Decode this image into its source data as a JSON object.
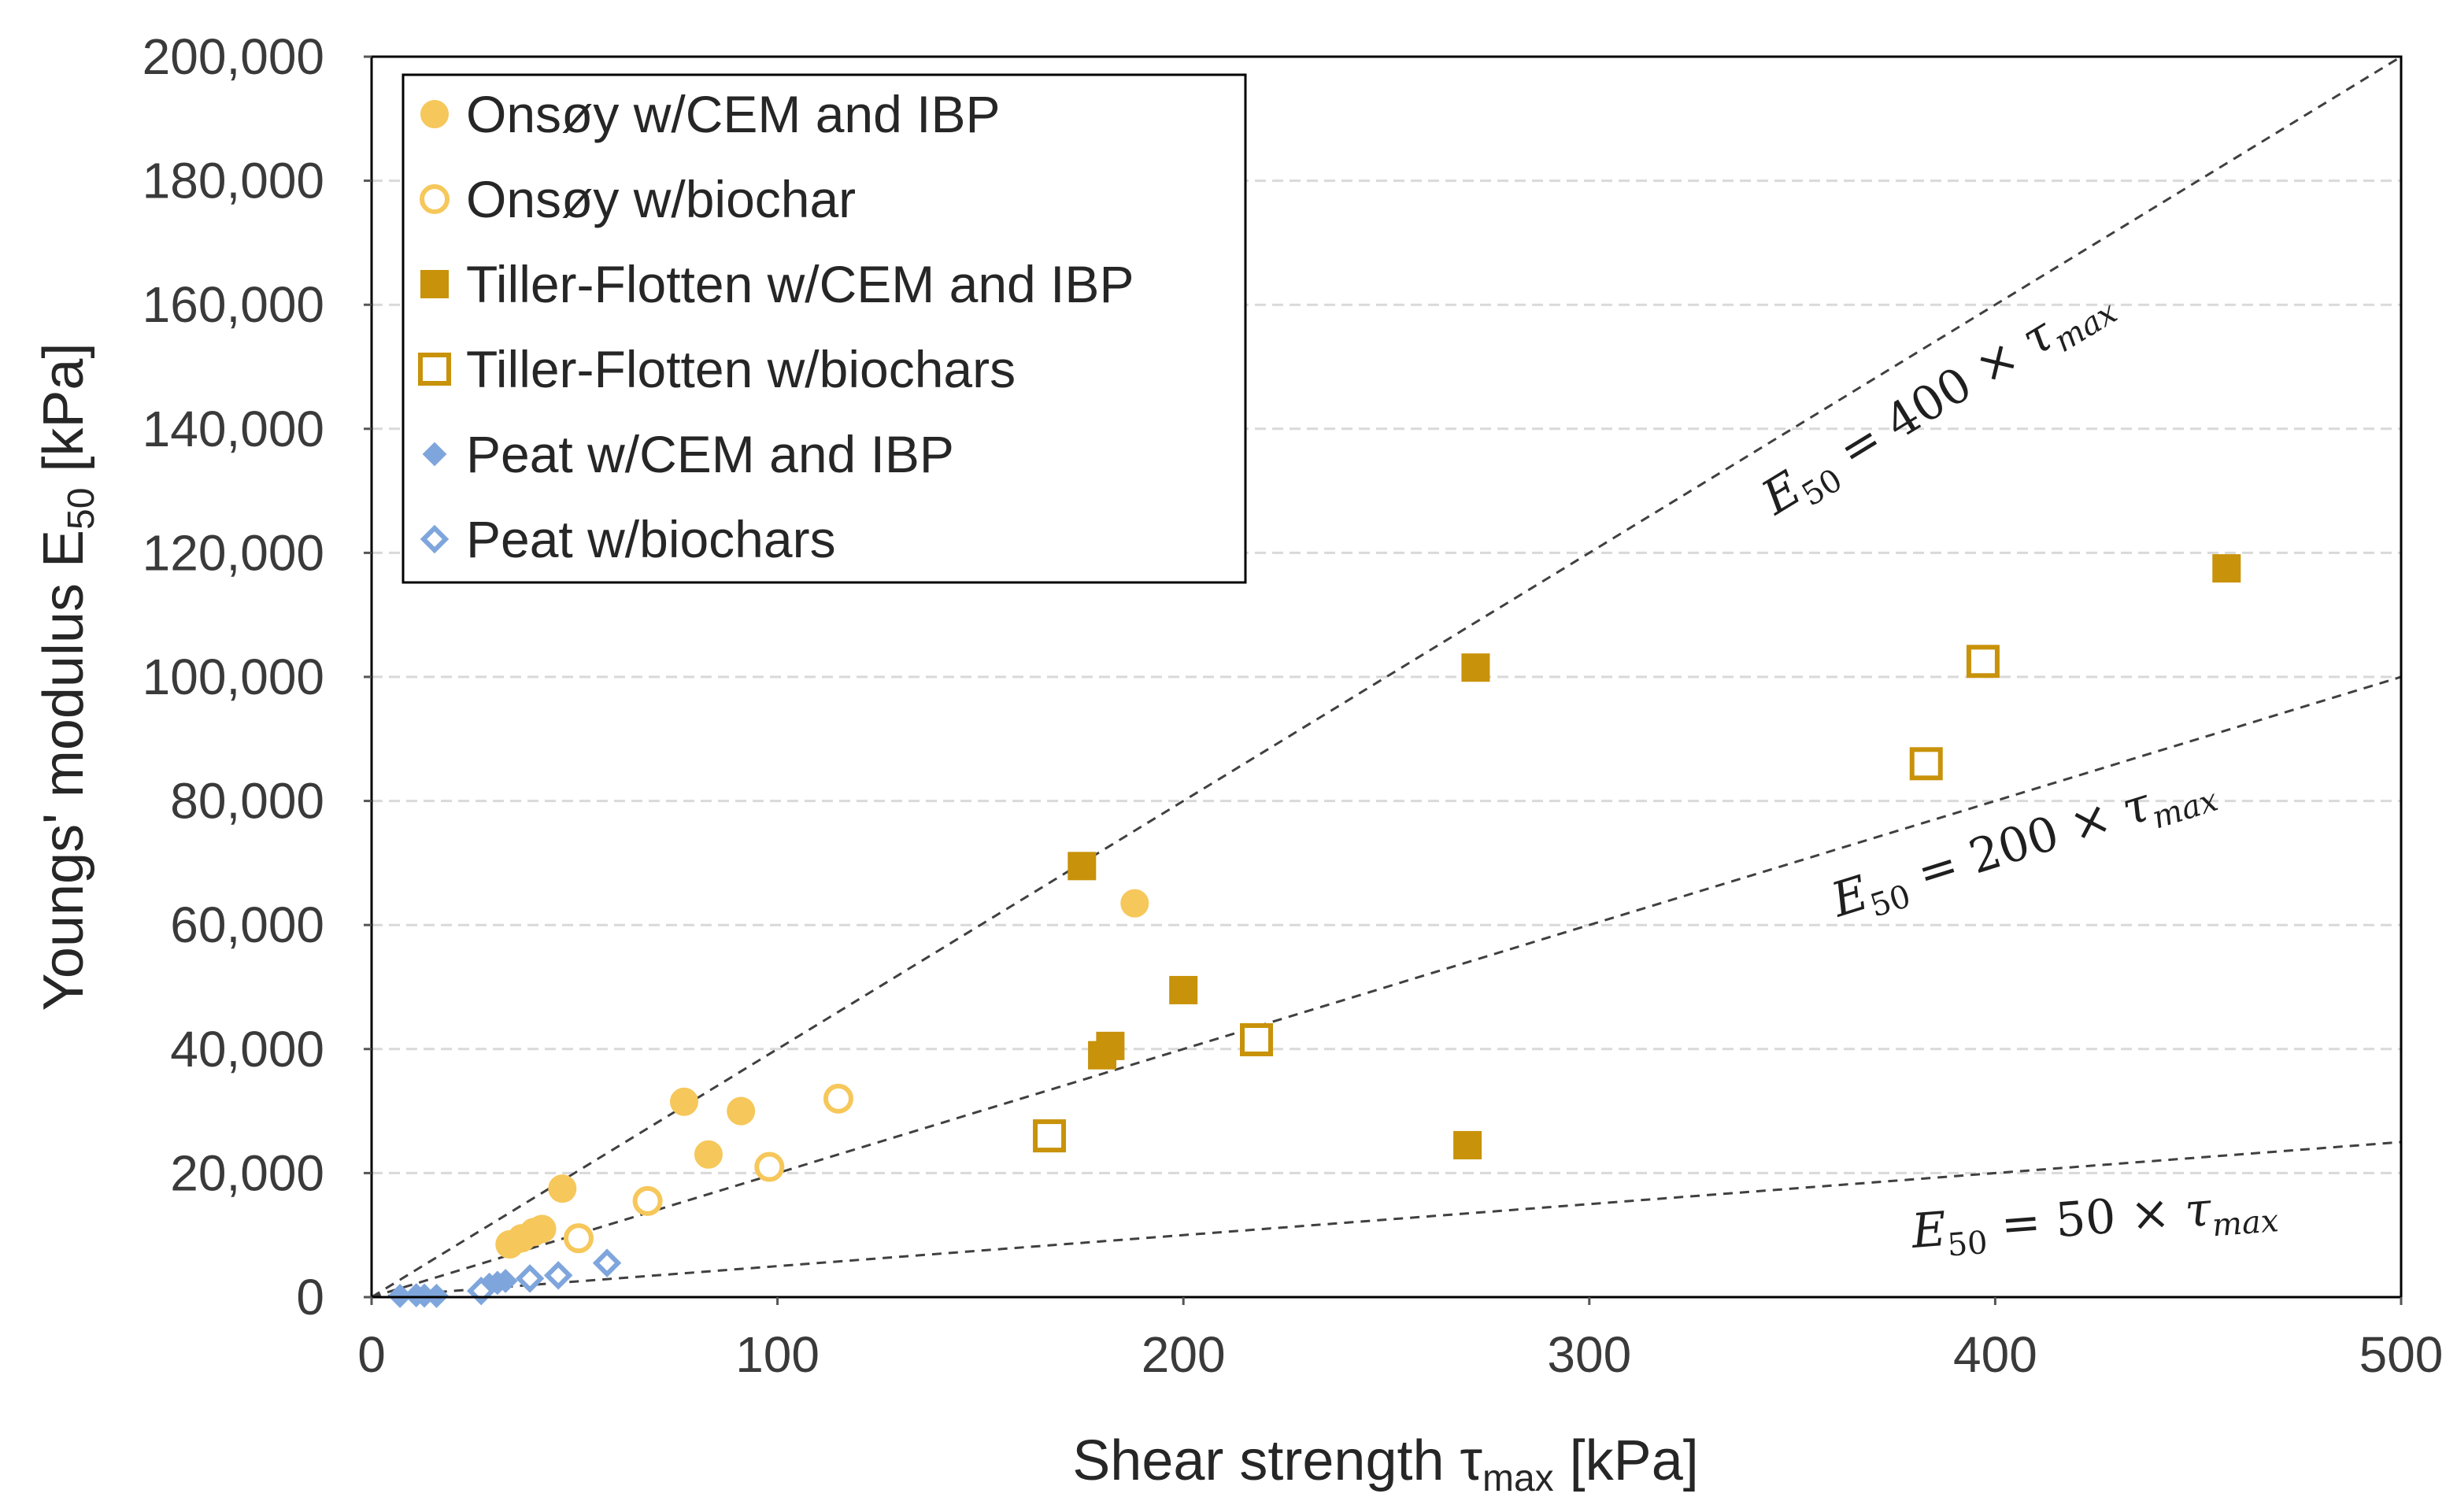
{
  "chart_data": {
    "type": "scatter",
    "title": "",
    "xlabel": {
      "main": "Shear strength τ",
      "sub": "max",
      "unit": " [kPa]"
    },
    "ylabel": {
      "main": "Youngs' modulus E",
      "sub": "50",
      "unit": " [kPa]"
    },
    "xlim": [
      0,
      500
    ],
    "ylim": [
      0,
      200000
    ],
    "x_ticks": [
      0,
      100,
      200,
      300,
      400,
      500
    ],
    "x_tick_labels": [
      "0",
      "100",
      "200",
      "300",
      "400",
      "500"
    ],
    "y_ticks": [
      0,
      20000,
      40000,
      60000,
      80000,
      100000,
      120000,
      140000,
      160000,
      180000,
      200000
    ],
    "y_tick_labels": [
      "0",
      "20,000",
      "40,000",
      "60,000",
      "80,000",
      "100,000",
      "120,000",
      "140,000",
      "160,000",
      "180,000",
      "200,000"
    ],
    "grid": "horizontal dashed",
    "legend_position": "top-left",
    "series": [
      {
        "name": "Onsøy w/CEM and IBP",
        "marker": "circle",
        "filled": true,
        "color": "#F6C75A",
        "points": [
          [
            34,
            8500
          ],
          [
            37,
            9500
          ],
          [
            40,
            10500
          ],
          [
            42,
            11000
          ],
          [
            47,
            17500
          ],
          [
            77,
            31500
          ],
          [
            83,
            23000
          ],
          [
            91,
            30000
          ],
          [
            188,
            63500
          ]
        ]
      },
      {
        "name": "Onsøy w/biochar",
        "marker": "circle",
        "filled": false,
        "color": "#F6C75A",
        "points": [
          [
            51,
            9500
          ],
          [
            68,
            15500
          ],
          [
            98,
            21000
          ],
          [
            115,
            32000
          ]
        ]
      },
      {
        "name": "Tiller-Flotten w/CEM and IBP",
        "marker": "square",
        "filled": true,
        "color": "#C8920A",
        "points": [
          [
            175,
            69500
          ],
          [
            180,
            39000
          ],
          [
            182,
            40500
          ],
          [
            200,
            49500
          ],
          [
            270,
            24500
          ],
          [
            272,
            101500
          ],
          [
            457,
            117500
          ]
        ]
      },
      {
        "name": "Tiller-Flotten w/biochars",
        "marker": "square",
        "filled": false,
        "color": "#C8920A",
        "points": [
          [
            167,
            26000
          ],
          [
            218,
            41500
          ],
          [
            383,
            86000
          ],
          [
            397,
            102500
          ]
        ]
      },
      {
        "name": "Peat w/CEM and IBP",
        "marker": "diamond",
        "filled": true,
        "color": "#7FA6DC",
        "points": [
          [
            7,
            200
          ],
          [
            11,
            300
          ],
          [
            13,
            250
          ],
          [
            16,
            200
          ],
          [
            29,
            2000
          ],
          [
            31,
            2300
          ],
          [
            33,
            2600
          ]
        ]
      },
      {
        "name": "Peat w/biochars",
        "marker": "diamond",
        "filled": false,
        "color": "#7FA6DC",
        "points": [
          [
            27,
            1000
          ],
          [
            39,
            3000
          ],
          [
            46,
            3500
          ],
          [
            58,
            5500
          ]
        ]
      }
    ],
    "reference_lines": [
      {
        "slope": 400,
        "label": "E50 = 400 × τmax",
        "label_parts": {
          "lhs": "E",
          "lhs_sub": "50",
          "eq": " = 400 × ",
          "tau": "τ",
          "tau_sub": "max"
        }
      },
      {
        "slope": 200,
        "label": "E50 = 200 × τmax",
        "label_parts": {
          "lhs": "E",
          "lhs_sub": "50",
          "eq": " = 200 × ",
          "tau": "τ",
          "tau_sub": "max"
        }
      },
      {
        "slope": 50,
        "label": "E50 = 50 × τmax",
        "label_parts": {
          "lhs": "E",
          "lhs_sub": "50",
          "eq": " = 50 × ",
          "tau": "τ",
          "tau_sub": "max"
        }
      }
    ],
    "colors": {
      "plot_border": "#000000",
      "axis": "#555555",
      "grid": "#d9d9d9",
      "reference_line": "#404040"
    }
  }
}
